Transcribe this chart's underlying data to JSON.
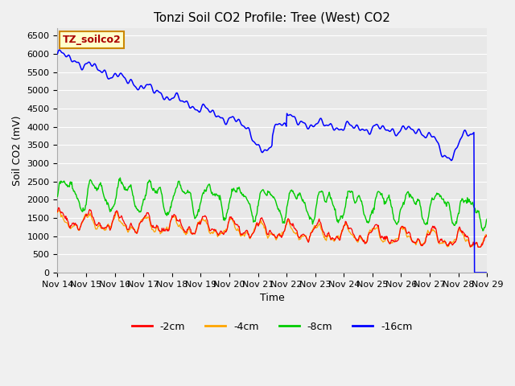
{
  "title": "Tonzi Soil CO2 Profile: Tree (West) CO2",
  "ylabel": "Soil CO2 (mV)",
  "xlabel": "Time",
  "legend_label": "TZ_soilco2",
  "ylim": [
    0,
    6700
  ],
  "yticks": [
    0,
    500,
    1000,
    1500,
    2000,
    2500,
    3000,
    3500,
    4000,
    4500,
    5000,
    5500,
    6000,
    6500
  ],
  "fig_width": 6.4,
  "fig_height": 4.8,
  "fig_dpi": 100,
  "bg_color": "#f0f0f0",
  "plot_bg_color": "#e8e8e8",
  "grid_color": "#ffffff",
  "legend_entries": [
    "-2cm",
    "-4cm",
    "-8cm",
    "-16cm"
  ],
  "legend_colors": [
    "#ff0000",
    "#ffa500",
    "#00cc00",
    "#0000ff"
  ],
  "tz_box_facecolor": "#ffffcc",
  "tz_box_edgecolor": "#cc8800",
  "tz_text_color": "#aa0000",
  "spine_color": "#aaaaaa"
}
